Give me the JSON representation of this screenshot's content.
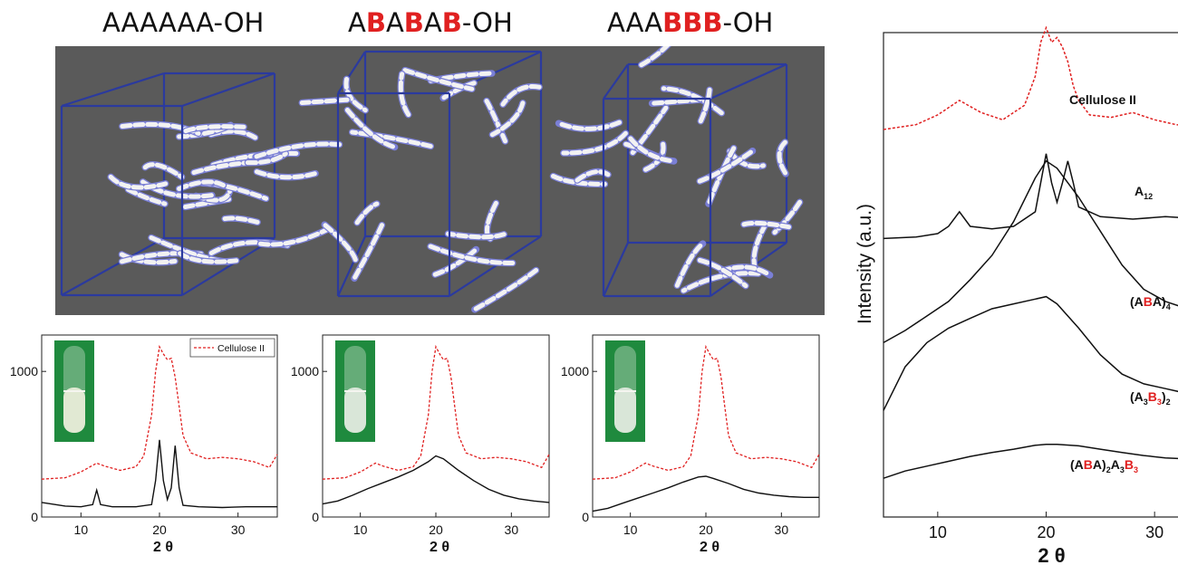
{
  "sequences": [
    {
      "parts": [
        {
          "t": "AAAAAA",
          "b": false
        },
        {
          "t": "-OH",
          "b": false
        }
      ]
    },
    {
      "parts": [
        {
          "t": "A",
          "b": false
        },
        {
          "t": "B",
          "b": true
        },
        {
          "t": "A",
          "b": false
        },
        {
          "t": "B",
          "b": true
        },
        {
          "t": "A",
          "b": false
        },
        {
          "t": "B",
          "b": true
        },
        {
          "t": "-OH",
          "b": false
        }
      ]
    },
    {
      "parts": [
        {
          "t": "AAA",
          "b": false
        },
        {
          "t": "BBB",
          "b": true
        },
        {
          "t": "-OH",
          "b": false
        }
      ]
    }
  ],
  "colors": {
    "reference": "#e02020",
    "sample": "#111111",
    "panel_bg": "#5a5a5a",
    "box_edges": "#2b3a9e",
    "fiber_white": "#f2f2f2",
    "fiber_blue": "#7a7fd6",
    "vial_bg": "#1f8a3e"
  },
  "chart_data": [
    {
      "type": "line",
      "xlabel": "2 θ",
      "xticks": [
        10,
        20,
        30
      ],
      "yticks": [
        0,
        1000
      ],
      "xlim": [
        5,
        35
      ],
      "ylim": [
        0,
        1250
      ],
      "legend": {
        "label": "Cellulose II",
        "position": "top-right"
      },
      "series": [
        {
          "name": "Cellulose II",
          "style": "dashed",
          "x": [
            5,
            8,
            10,
            12,
            13,
            15,
            17,
            18,
            19,
            19.5,
            20,
            20.5,
            21,
            21.5,
            22,
            22.5,
            23,
            24,
            26,
            28,
            30,
            32,
            34,
            35
          ],
          "y": [
            260,
            270,
            310,
            370,
            350,
            320,
            345,
            420,
            700,
            1000,
            1170,
            1120,
            1080,
            1090,
            960,
            760,
            560,
            440,
            400,
            410,
            400,
            380,
            340,
            430
          ]
        },
        {
          "x": [
            5,
            8,
            10,
            11.5,
            12,
            12.5,
            14,
            17,
            19,
            19.5,
            20,
            20.5,
            21,
            21.5,
            22,
            22.5,
            23,
            25,
            28,
            31,
            35
          ],
          "y": [
            100,
            75,
            70,
            85,
            185,
            85,
            70,
            70,
            85,
            250,
            530,
            250,
            120,
            200,
            490,
            200,
            80,
            70,
            65,
            70,
            70
          ]
        }
      ]
    },
    {
      "type": "line",
      "xlabel": "2 θ",
      "xticks": [
        10,
        20,
        30
      ],
      "yticks": [
        0,
        1000
      ],
      "xlim": [
        5,
        35
      ],
      "ylim": [
        0,
        1250
      ],
      "series": [
        {
          "name": "Cellulose II",
          "style": "dashed",
          "x": [
            5,
            8,
            10,
            12,
            13,
            15,
            17,
            18,
            19,
            19.5,
            20,
            20.5,
            21,
            21.5,
            22,
            22.5,
            23,
            24,
            26,
            28,
            30,
            32,
            34,
            35
          ],
          "y": [
            260,
            270,
            310,
            370,
            350,
            320,
            345,
            420,
            700,
            1000,
            1170,
            1120,
            1080,
            1090,
            960,
            760,
            560,
            440,
            400,
            410,
            400,
            380,
            340,
            430
          ]
        },
        {
          "x": [
            5,
            7,
            9,
            11,
            13,
            15,
            17,
            19,
            20,
            21,
            23,
            25,
            27,
            29,
            31,
            33,
            35
          ],
          "y": [
            90,
            110,
            150,
            195,
            235,
            275,
            320,
            380,
            420,
            400,
            320,
            250,
            190,
            150,
            125,
            110,
            100
          ]
        }
      ]
    },
    {
      "type": "line",
      "xlabel": "2 θ",
      "xticks": [
        10,
        20,
        30
      ],
      "yticks": [
        0,
        1000
      ],
      "xlim": [
        5,
        35
      ],
      "ylim": [
        0,
        1250
      ],
      "series": [
        {
          "name": "Cellulose II",
          "style": "dashed",
          "x": [
            5,
            8,
            10,
            12,
            13,
            15,
            17,
            18,
            19,
            19.5,
            20,
            20.5,
            21,
            21.5,
            22,
            22.5,
            23,
            24,
            26,
            28,
            30,
            32,
            34,
            35
          ],
          "y": [
            260,
            270,
            310,
            370,
            350,
            320,
            345,
            420,
            700,
            1000,
            1170,
            1120,
            1080,
            1090,
            960,
            760,
            560,
            440,
            400,
            410,
            400,
            380,
            340,
            430
          ]
        },
        {
          "x": [
            5,
            7,
            9,
            11,
            13,
            15,
            17,
            19,
            20,
            21,
            23,
            25,
            27,
            29,
            31,
            33,
            35
          ],
          "y": [
            40,
            60,
            95,
            130,
            165,
            200,
            240,
            275,
            280,
            265,
            230,
            190,
            165,
            150,
            140,
            135,
            135
          ]
        }
      ]
    },
    {
      "type": "line",
      "xlabel": "2 θ",
      "ylabel": "Intensity (a.u.)",
      "xticks": [
        10,
        20,
        30
      ],
      "xlim": [
        5,
        35
      ],
      "ylim": [
        0,
        10
      ],
      "series": [
        {
          "name": "Cellulose II",
          "style": "dashed",
          "label_parts": [
            {
              "t": "Cellulose II",
              "c": "k"
            }
          ],
          "x": [
            5,
            8,
            10,
            12,
            14,
            16,
            18,
            19,
            19.5,
            20,
            20.5,
            21,
            21.5,
            22,
            22.5,
            23,
            24,
            26,
            28,
            30,
            32,
            35
          ],
          "y": [
            8.0,
            8.1,
            8.3,
            8.6,
            8.35,
            8.2,
            8.5,
            9.1,
            9.8,
            10.1,
            9.8,
            9.9,
            9.7,
            9.4,
            8.9,
            8.6,
            8.3,
            8.25,
            8.35,
            8.2,
            8.1,
            8.05
          ]
        },
        {
          "label_parts": [
            {
              "t": "A",
              "c": "k"
            },
            {
              "t": "12",
              "c": "k",
              "sub": true
            }
          ],
          "x": [
            5,
            8,
            10,
            11,
            12,
            13,
            15,
            17,
            19,
            19.5,
            20,
            20.5,
            21,
            21.5,
            22,
            22.5,
            23,
            25,
            28,
            31,
            35
          ],
          "y": [
            5.75,
            5.78,
            5.85,
            6.0,
            6.3,
            6.0,
            5.95,
            6.0,
            6.3,
            6.9,
            7.5,
            6.9,
            6.5,
            6.9,
            7.35,
            6.9,
            6.4,
            6.2,
            6.15,
            6.2,
            6.15
          ]
        },
        {
          "label_parts": [
            {
              "t": "(A",
              "c": "k"
            },
            {
              "t": "B",
              "c": "r"
            },
            {
              "t": "A)",
              "c": "k"
            },
            {
              "t": "4",
              "c": "k",
              "sub": true
            }
          ],
          "x": [
            5,
            7,
            9,
            11,
            13,
            15,
            17,
            19,
            20,
            21,
            23,
            25,
            27,
            29,
            31,
            33,
            35
          ],
          "y": [
            3.6,
            3.85,
            4.15,
            4.45,
            4.9,
            5.4,
            6.1,
            7.0,
            7.35,
            7.2,
            6.6,
            5.9,
            5.2,
            4.7,
            4.45,
            4.3,
            4.25
          ]
        },
        {
          "label_parts": [
            {
              "t": "(A",
              "c": "k"
            },
            {
              "t": "3",
              "c": "k",
              "sub": true
            },
            {
              "t": "B",
              "c": "r"
            },
            {
              "t": "3",
              "c": "r",
              "sub": true
            },
            {
              "t": ")",
              "c": "k"
            },
            {
              "t": "2",
              "c": "k",
              "sub": true
            }
          ],
          "x": [
            5,
            7,
            9,
            11,
            13,
            15,
            17,
            19,
            20,
            21,
            23,
            25,
            27,
            29,
            31,
            33,
            35
          ],
          "y": [
            2.2,
            3.1,
            3.6,
            3.9,
            4.1,
            4.3,
            4.4,
            4.5,
            4.55,
            4.4,
            3.9,
            3.35,
            2.95,
            2.75,
            2.65,
            2.55,
            2.5
          ]
        },
        {
          "label_parts": [
            {
              "t": "(A",
              "c": "k"
            },
            {
              "t": "B",
              "c": "r"
            },
            {
              "t": "A)",
              "c": "k"
            },
            {
              "t": "2",
              "c": "k",
              "sub": true
            },
            {
              "t": "A",
              "c": "k"
            },
            {
              "t": "3",
              "c": "k",
              "sub": true
            },
            {
              "t": "B",
              "c": "r"
            },
            {
              "t": "3",
              "c": "r",
              "sub": true
            }
          ],
          "x": [
            5,
            7,
            9,
            11,
            13,
            15,
            17,
            19,
            20,
            21,
            23,
            25,
            27,
            29,
            31,
            33,
            35
          ],
          "y": [
            0.8,
            0.95,
            1.05,
            1.15,
            1.25,
            1.33,
            1.4,
            1.48,
            1.5,
            1.5,
            1.47,
            1.4,
            1.33,
            1.27,
            1.22,
            1.2,
            1.18
          ]
        }
      ]
    }
  ]
}
